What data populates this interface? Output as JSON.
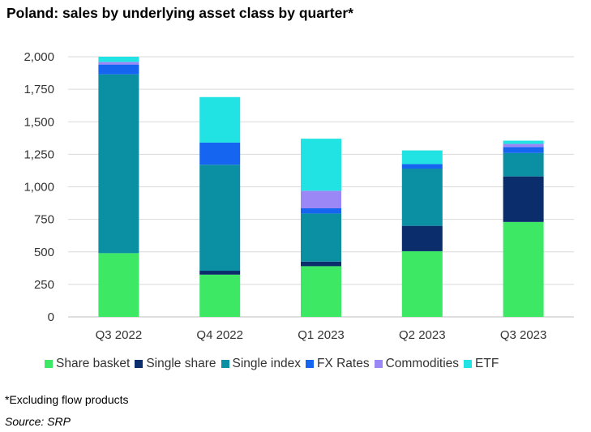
{
  "title": "Poland: sales by underlying asset class by quarter*",
  "footnote": "*Excluding flow products",
  "source": "Source: SRP",
  "chart_data": {
    "type": "bar",
    "stacked": true,
    "categories": [
      "Q3 2022",
      "Q4 2022",
      "Q1 2023",
      "Q2 2023",
      "Q3 2023"
    ],
    "ylim": [
      0,
      2000
    ],
    "yticks": [
      0,
      250,
      500,
      750,
      1000,
      1250,
      1500,
      1750,
      2000
    ],
    "ytick_labels": [
      "0",
      "250",
      "500",
      "750",
      "1,000",
      "1,250",
      "1,500",
      "1,750",
      "2,000"
    ],
    "grid": true,
    "legend_position": "bottom",
    "series": [
      {
        "name": "Share basket",
        "color": "#3de865",
        "values": [
          490,
          325,
          390,
          505,
          730
        ]
      },
      {
        "name": "Single share",
        "color": "#0b2d6b",
        "values": [
          0,
          30,
          35,
          195,
          350
        ]
      },
      {
        "name": "Single index",
        "color": "#0a8fa3",
        "values": [
          1375,
          815,
          370,
          440,
          180
        ]
      },
      {
        "name": "FX Rates",
        "color": "#1565f0",
        "values": [
          75,
          170,
          40,
          35,
          45
        ]
      },
      {
        "name": "Commodities",
        "color": "#9b87f5",
        "values": [
          20,
          0,
          135,
          0,
          25
        ]
      },
      {
        "name": "ETF",
        "color": "#22e3e3",
        "values": [
          40,
          350,
          400,
          105,
          25
        ]
      }
    ]
  }
}
